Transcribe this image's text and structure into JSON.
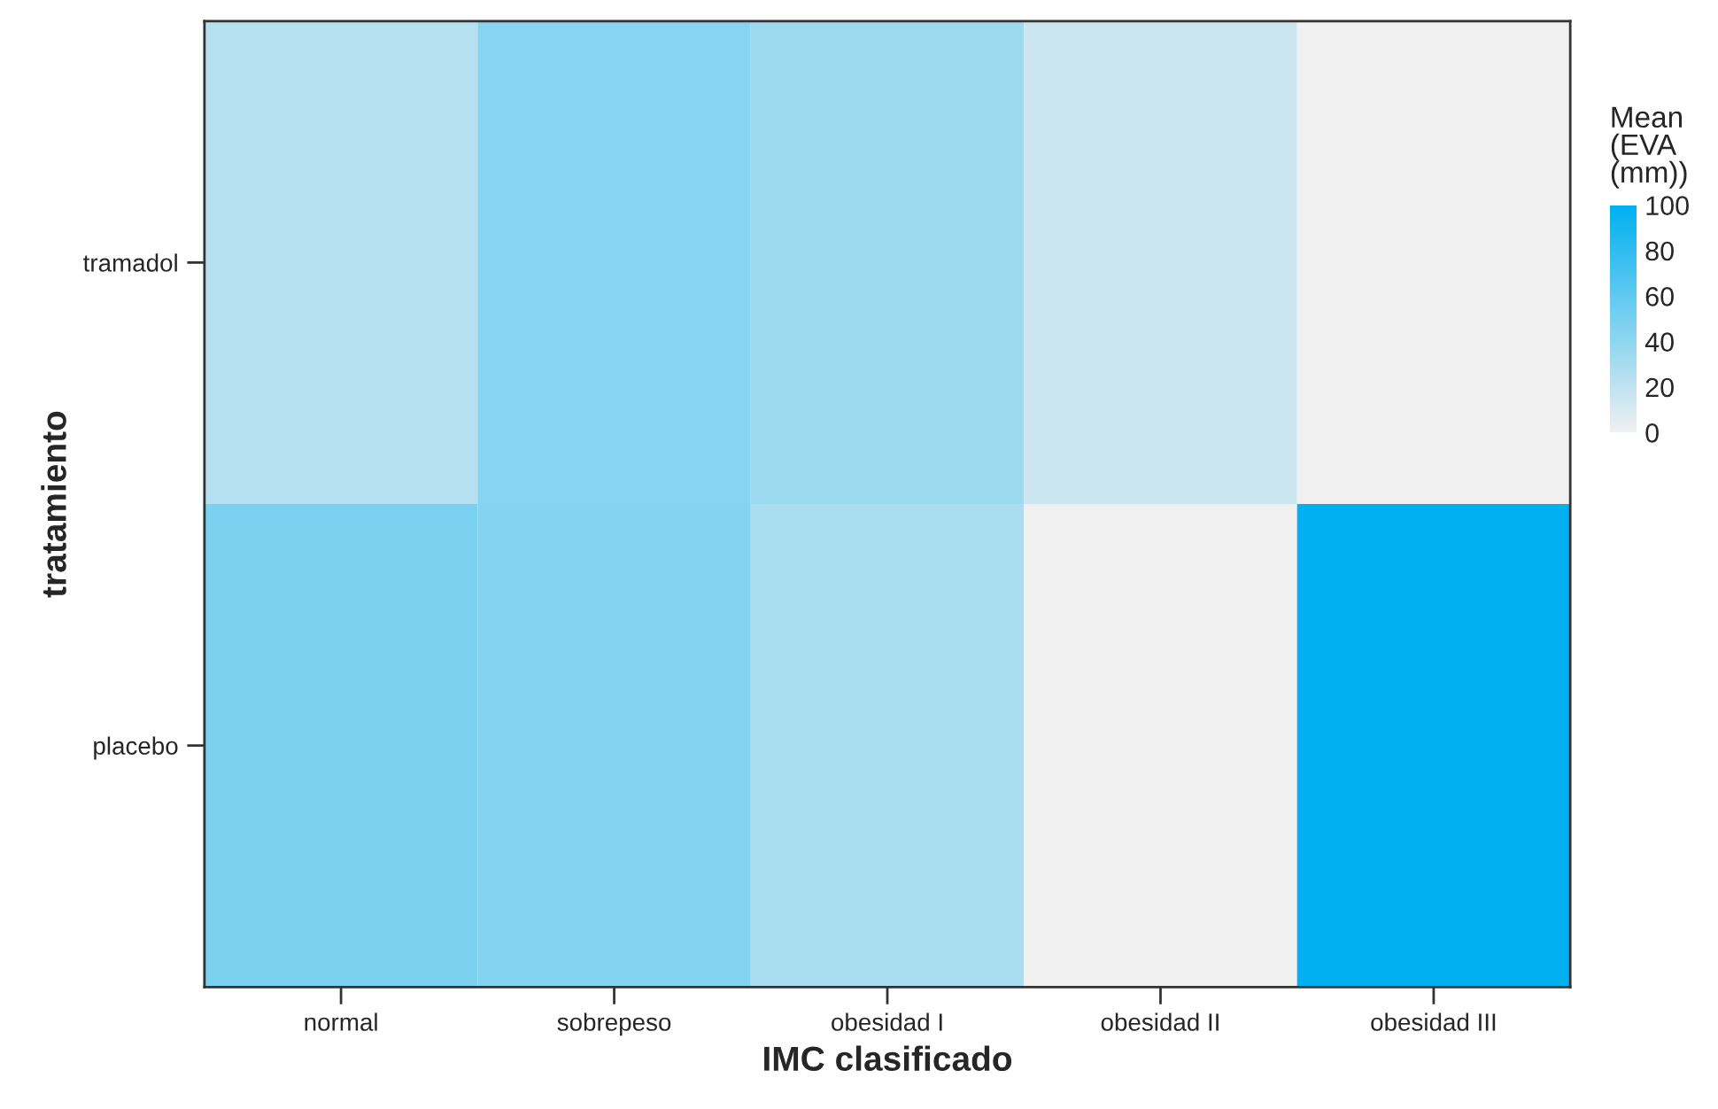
{
  "chart_data": {
    "type": "heatmap",
    "xlabel": "IMC clasificado",
    "ylabel": "tratamiento",
    "legend_title": "Mean (EVA (mm))",
    "categories": [
      "normal",
      "sobrepeso",
      "obesidad I",
      "obesidad II",
      "obesidad III"
    ],
    "y_categories": [
      "tramadol",
      "placebo"
    ],
    "cells": [
      [
        25,
        43,
        35,
        15,
        0
      ],
      [
        49,
        45,
        29,
        0,
        100
      ]
    ],
    "colors": [
      "#f0f0f0",
      "#00b0f0"
    ],
    "clim": [
      0,
      100
    ],
    "cticks": [
      100,
      80,
      60,
      40,
      20,
      0
    ]
  }
}
